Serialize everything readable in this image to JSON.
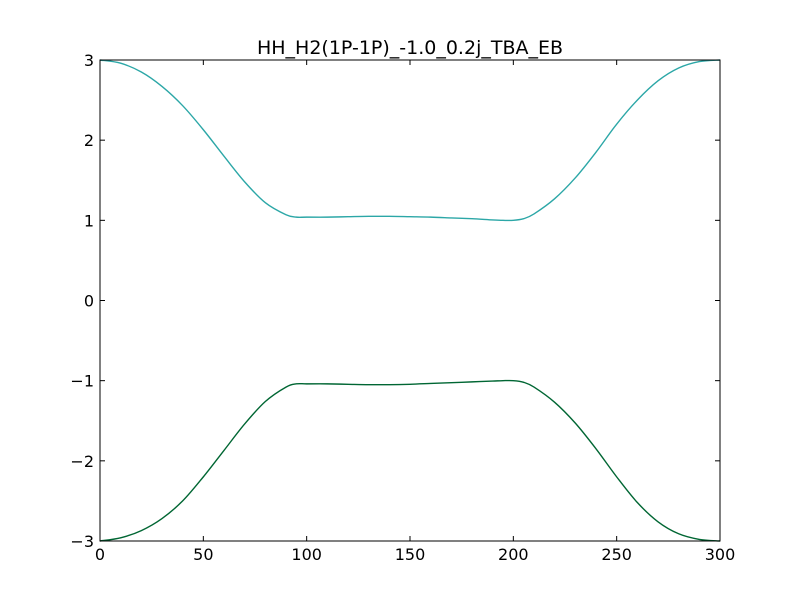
{
  "chart_data": {
    "type": "line",
    "title": "HH_H2(1P-1P)_-1.0_0.2j_TBA_EB",
    "xlabel": "",
    "ylabel": "",
    "xlim": [
      0,
      300
    ],
    "ylim": [
      -3,
      3
    ],
    "grid": false,
    "x_ticks": [
      0,
      50,
      100,
      150,
      200,
      250,
      300
    ],
    "y_ticks": [
      -3,
      -2,
      -1,
      0,
      1,
      2,
      3
    ],
    "x_tick_labels": [
      "0",
      "50",
      "100",
      "150",
      "200",
      "250",
      "300"
    ],
    "y_tick_labels": [
      "−3",
      "−2",
      "−1",
      "0",
      "1",
      "2",
      "3"
    ],
    "series": [
      {
        "color": "#2ca7a7",
        "x": [
          0,
          10,
          20,
          30,
          40,
          50,
          60,
          70,
          80,
          90,
          95,
          100,
          110,
          120,
          130,
          140,
          150,
          160,
          170,
          180,
          190,
          195,
          200,
          205,
          210,
          220,
          230,
          240,
          250,
          260,
          270,
          280,
          290,
          300
        ],
        "y": [
          3.0,
          2.96,
          2.85,
          2.67,
          2.43,
          2.13,
          1.8,
          1.48,
          1.22,
          1.07,
          1.04,
          1.04,
          1.04,
          1.045,
          1.05,
          1.05,
          1.045,
          1.04,
          1.03,
          1.02,
          1.005,
          1.0,
          1.0,
          1.02,
          1.08,
          1.27,
          1.53,
          1.85,
          2.2,
          2.5,
          2.74,
          2.9,
          2.98,
          3.0
        ]
      },
      {
        "color": "#006633",
        "x": [
          0,
          10,
          20,
          30,
          40,
          50,
          60,
          70,
          80,
          90,
          95,
          100,
          110,
          120,
          130,
          140,
          150,
          160,
          170,
          180,
          190,
          195,
          200,
          205,
          210,
          220,
          230,
          240,
          250,
          260,
          270,
          280,
          290,
          300
        ],
        "y": [
          -3.0,
          -2.96,
          -2.87,
          -2.72,
          -2.5,
          -2.2,
          -1.87,
          -1.54,
          -1.26,
          -1.08,
          -1.04,
          -1.04,
          -1.04,
          -1.045,
          -1.05,
          -1.05,
          -1.045,
          -1.035,
          -1.025,
          -1.015,
          -1.005,
          -1.0,
          -1.0,
          -1.02,
          -1.08,
          -1.27,
          -1.53,
          -1.85,
          -2.2,
          -2.52,
          -2.76,
          -2.91,
          -2.98,
          -3.0
        ]
      }
    ]
  }
}
